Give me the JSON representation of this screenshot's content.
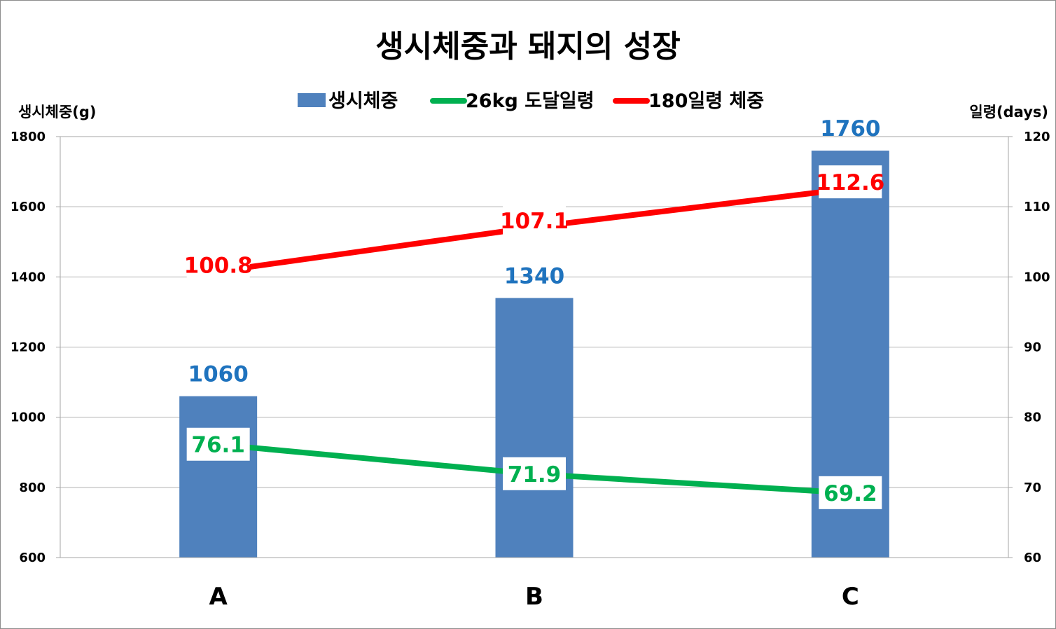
{
  "chart_data": {
    "type": "bar",
    "title": "생시체중과 돼지의 성장",
    "categories": [
      "A",
      "B",
      "C"
    ],
    "series": [
      {
        "name": "생시체중",
        "kind": "bar",
        "axis": "left",
        "values": [
          1060,
          1340,
          1760
        ],
        "color": "#4f81bd",
        "label_color": "#1f73be"
      },
      {
        "name": "26kg 도달일령",
        "kind": "line",
        "axis": "right",
        "values": [
          76.1,
          71.9,
          69.2
        ],
        "color": "#00b050",
        "label_color": "#00b050"
      },
      {
        "name": "180일령 체중",
        "kind": "line",
        "axis": "right",
        "values": [
          100.8,
          107.1,
          112.6
        ],
        "color": "#ff0000",
        "label_color": "#ff0000"
      }
    ],
    "ylabel": "생시체중(g)",
    "y2label": "일령(days)",
    "ylim": [
      600,
      1800
    ],
    "y2lim": [
      60,
      120
    ],
    "yticks": [
      "600",
      "800",
      "1000",
      "1200",
      "1400",
      "1600",
      "1800"
    ],
    "y2ticks": [
      "60",
      "70",
      "80",
      "90",
      "100",
      "110",
      "120"
    ],
    "grid": true,
    "legend": "top-center"
  }
}
